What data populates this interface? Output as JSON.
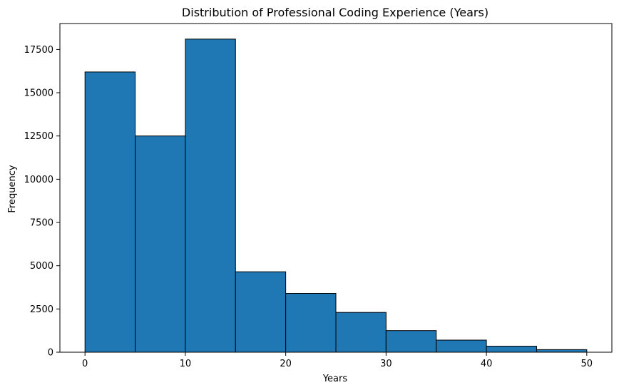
{
  "chart_data": {
    "type": "bar",
    "subtype": "histogram",
    "title": "Distribution of Professional Coding Experience (Years)",
    "xlabel": "Years",
    "ylabel": "Frequency",
    "bins": [
      [
        0,
        5
      ],
      [
        5,
        10
      ],
      [
        10,
        15
      ],
      [
        15,
        20
      ],
      [
        20,
        25
      ],
      [
        25,
        30
      ],
      [
        30,
        35
      ],
      [
        35,
        40
      ],
      [
        40,
        45
      ],
      [
        45,
        50
      ]
    ],
    "values": [
      16200,
      12500,
      18100,
      4650,
      3400,
      2300,
      1250,
      700,
      350,
      150
    ],
    "xlim": [
      -2.5,
      52.5
    ],
    "ylim": [
      0,
      19000
    ],
    "xticks": [
      0,
      10,
      20,
      30,
      40,
      50
    ],
    "xtick_labels": [
      "0",
      "10",
      "20",
      "30",
      "40",
      "50"
    ],
    "yticks": [
      0,
      2500,
      5000,
      7500,
      10000,
      12500,
      15000,
      17500
    ],
    "ytick_labels": [
      "0",
      "2500",
      "5000",
      "7500",
      "10000",
      "12500",
      "15000",
      "17500"
    ],
    "bar_color": "#1f77b4",
    "edge_color": "#000000",
    "grid": false,
    "legend": "none"
  }
}
